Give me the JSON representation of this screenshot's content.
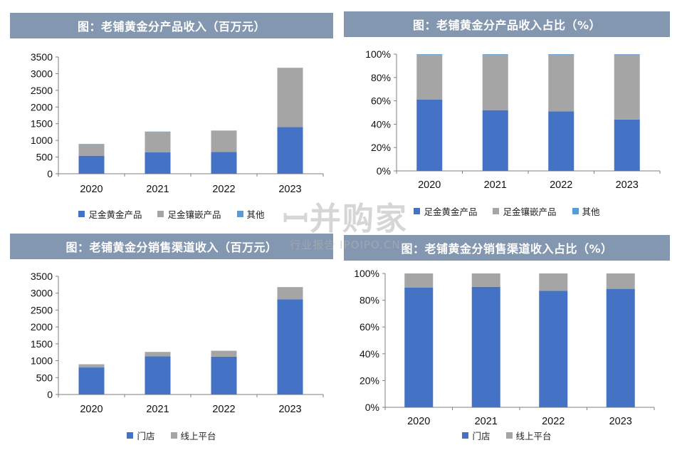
{
  "colors": {
    "blue": "#4472c4",
    "gray": "#a5a5a5",
    "light_blue": "#5b9bd5",
    "title_bg": "#8497b0"
  },
  "watermark": {
    "main": "ꟷ并购家",
    "sub": "行业报告 IPOIPO.CN"
  },
  "chart_data": [
    {
      "type": "bar",
      "title": "图：老铺黄金分产品收入（百万元）",
      "categories": [
        "2020",
        "2021",
        "2022",
        "2023"
      ],
      "series": [
        {
          "name": "足金黄金产品",
          "values": [
            540,
            640,
            650,
            1400
          ]
        },
        {
          "name": "足金镶嵌产品",
          "values": [
            350,
            620,
            640,
            1770
          ]
        },
        {
          "name": "其他",
          "values": [
            5,
            5,
            5,
            5
          ]
        }
      ],
      "stacked": true,
      "ylim": [
        0,
        3500
      ],
      "yticks": [
        "0",
        "500",
        "1000",
        "1500",
        "2000",
        "2500",
        "3000",
        "3500"
      ],
      "grid": false,
      "legend_position": "bottom"
    },
    {
      "type": "bar",
      "title": "图：老铺黄金分产品收入占比（%）",
      "categories": [
        "2020",
        "2021",
        "2022",
        "2023"
      ],
      "series": [
        {
          "name": "足金黄金产品",
          "values": [
            61,
            52,
            51,
            44
          ]
        },
        {
          "name": "足金镶嵌产品",
          "values": [
            38.5,
            47.5,
            48.5,
            55.6
          ]
        },
        {
          "name": "其他",
          "values": [
            0.5,
            0.5,
            0.5,
            0.4
          ]
        }
      ],
      "stacked": true,
      "ylim": [
        0,
        100
      ],
      "yticks": [
        "0%",
        "20%",
        "40%",
        "60%",
        "80%",
        "100%"
      ],
      "grid": false,
      "legend_position": "bottom"
    },
    {
      "type": "bar",
      "title": "图：老铺黄金分销售渠道收入（百万元）",
      "categories": [
        "2020",
        "2021",
        "2022",
        "2023"
      ],
      "series": [
        {
          "name": "门店",
          "values": [
            800,
            1130,
            1120,
            2820
          ]
        },
        {
          "name": "线上平台",
          "values": [
            95,
            130,
            175,
            360
          ]
        }
      ],
      "stacked": true,
      "ylim": [
        0,
        3500
      ],
      "yticks": [
        "0",
        "500",
        "1000",
        "1500",
        "2000",
        "2500",
        "3000",
        "3500"
      ],
      "grid": false,
      "legend_position": "bottom"
    },
    {
      "type": "bar",
      "title": "图：老铺黄金分销售渠道收入占比（%）",
      "categories": [
        "2020",
        "2021",
        "2022",
        "2023"
      ],
      "series": [
        {
          "name": "门店",
          "values": [
            89.5,
            90,
            87,
            88.5
          ]
        },
        {
          "name": "线上平台",
          "values": [
            10.5,
            10,
            13,
            11.5
          ]
        }
      ],
      "stacked": true,
      "ylim": [
        0,
        100
      ],
      "yticks": [
        "0%",
        "20%",
        "40%",
        "60%",
        "80%",
        "100%"
      ],
      "grid": false,
      "legend_position": "bottom"
    }
  ]
}
